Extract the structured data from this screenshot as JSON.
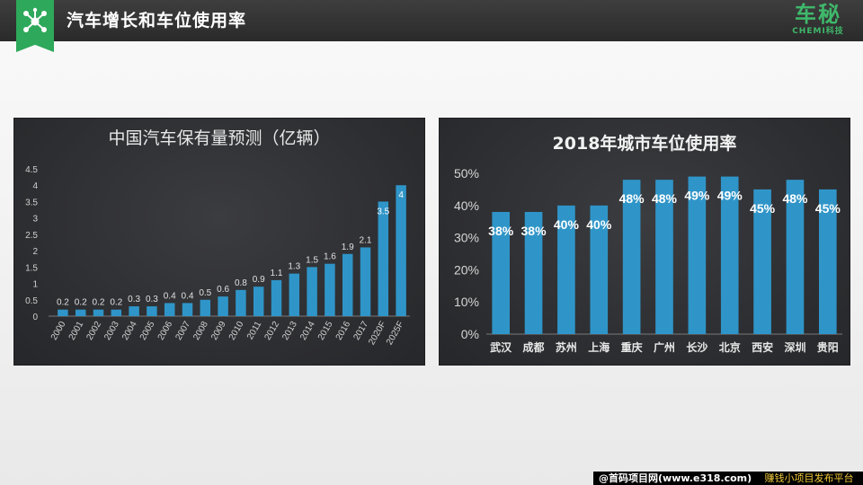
{
  "header": {
    "title": "汽车增长和车位使用率",
    "brand_main": "车秘",
    "brand_sub": "CHEMI科技",
    "logo_icon": "molecule-network-icon",
    "accent": "#2ea85a"
  },
  "footer": {
    "credit": "@首码项目网(www.e318.com)",
    "tag": "赚钱小项目发布平台"
  },
  "chart_data": [
    {
      "type": "bar",
      "title": "中国汽车保有量预测（亿辆）",
      "categories": [
        "2000",
        "2001",
        "2002",
        "2003",
        "2004",
        "2005",
        "2006",
        "2007",
        "2008",
        "2009",
        "2010",
        "2011",
        "2012",
        "2013",
        "2014",
        "2015",
        "2016",
        "2017",
        "2020F",
        "2025F"
      ],
      "values": [
        0.2,
        0.2,
        0.2,
        0.2,
        0.3,
        0.3,
        0.4,
        0.4,
        0.5,
        0.6,
        0.8,
        0.9,
        1.1,
        1.3,
        1.5,
        1.6,
        1.9,
        2.1,
        3.5,
        4
      ],
      "y_ticks": [
        "0",
        "0.5",
        "1",
        "1.5",
        "2",
        "2.5",
        "3",
        "3.5",
        "4",
        "4.5"
      ],
      "ylim": [
        0,
        4.5
      ],
      "bar_color": "#2f95c8",
      "grid": false,
      "legend": "none"
    },
    {
      "type": "bar",
      "title": "2018年城市车位使用率",
      "categories": [
        "武汉",
        "成都",
        "苏州",
        "上海",
        "重庆",
        "广州",
        "长沙",
        "北京",
        "西安",
        "深圳",
        "贵阳"
      ],
      "values": [
        38,
        38,
        40,
        40,
        48,
        48,
        49,
        49,
        45,
        48,
        45
      ],
      "data_labels": [
        "38%",
        "38%",
        "40%",
        "40%",
        "48%",
        "48%",
        "49%",
        "49%",
        "45%",
        "48%",
        "45%"
      ],
      "y_ticks": [
        "0%",
        "10%",
        "20%",
        "30%",
        "40%",
        "50%"
      ],
      "ylim": [
        0,
        50
      ],
      "bar_color": "#2f95c8",
      "grid": false,
      "legend": "none"
    }
  ]
}
